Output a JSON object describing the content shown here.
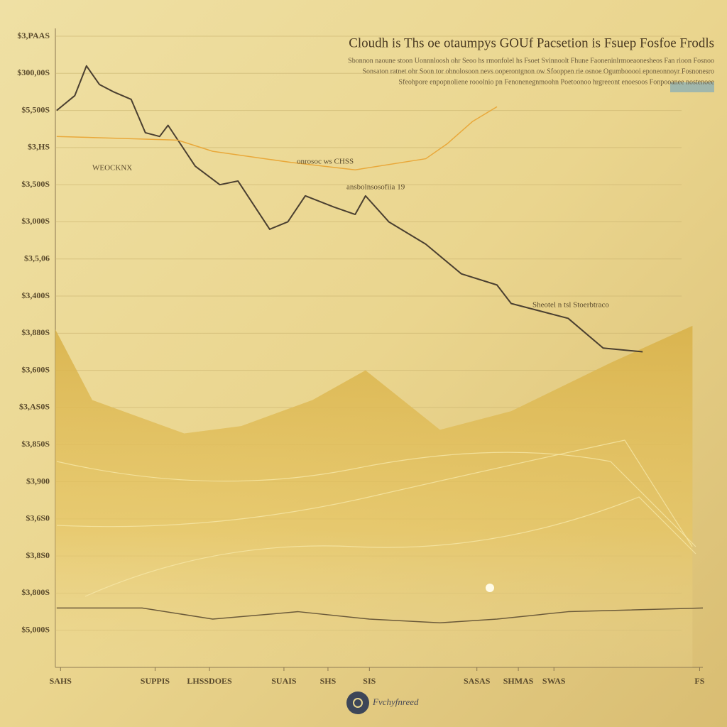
{
  "chart_data": {
    "type": "line",
    "title": "Cloudh is Ths oe otaumpys GOUf Pacsetion is Fsuep Fosfoe Frodls",
    "subtitle": [
      "Sbonnon naoune stoon Uonnnloosh ohr Seoo hs rmonfolel hs Fsoet Svinnoolt Fhune Faoneninlrmoeaonesheos Fan rioon Fosnoo",
      "Sonsaton ratnet ohr Soon tor ohnolosoon nevs ooperontgnon ow Sfooppen rie osnoe Ogumbooooi eponeonnoyr Fosnonesro",
      "Sfeohpore enpopnoliene rooolnio pn Fenonenegnmoohn Poetoonoo hrgreeont enoesoos Fonpooanee nostenoee"
    ],
    "annotations": [
      "WEOCKNX",
      "onrosoc ws CHSS",
      "ansbolnsosofiia 19",
      "Sheotel n tsl Stoerbtraco"
    ],
    "footer": "Fvchyfnreed",
    "xlim": [
      0,
      100
    ],
    "xticks": [
      {
        "value": 0.8,
        "label": "SAHS"
      },
      {
        "value": 15.4,
        "label": "SUPPIS"
      },
      {
        "value": 23.8,
        "label": "LHSSDOES"
      },
      {
        "value": 35.3,
        "label": "SUAIS"
      },
      {
        "value": 42.1,
        "label": "SHS"
      },
      {
        "value": 48.5,
        "label": "SIS"
      },
      {
        "value": 65.1,
        "label": "SASAS"
      },
      {
        "value": 71.5,
        "label": "SHMAS"
      },
      {
        "value": 77.0,
        "label": "SWAS"
      },
      {
        "value": 99.5,
        "label": "FS"
      }
    ],
    "ylim": [
      0,
      17
    ],
    "yticks": [
      {
        "value": 1,
        "label": "$5,000S"
      },
      {
        "value": 2,
        "label": "$3,800S"
      },
      {
        "value": 3,
        "label": "$3,8S0"
      },
      {
        "value": 4,
        "label": "$3,6S0"
      },
      {
        "value": 5,
        "label": "$3,900"
      },
      {
        "value": 6,
        "label": "$3,850S"
      },
      {
        "value": 7,
        "label": "$3,AS0S"
      },
      {
        "value": 8,
        "label": "$3,600S"
      },
      {
        "value": 9,
        "label": "$3,880S"
      },
      {
        "value": 10,
        "label": "$3,400S"
      },
      {
        "value": 11,
        "label": "$3,5,06"
      },
      {
        "value": 12,
        "label": "$3,000S"
      },
      {
        "value": 13,
        "label": "$3,500S"
      },
      {
        "value": 14,
        "label": "$3,HS"
      },
      {
        "value": 15,
        "label": "$5,500S"
      },
      {
        "value": 16,
        "label": "$300,00S"
      },
      {
        "value": 17,
        "label": "$3,PAAS"
      }
    ],
    "grid": true,
    "series": [
      {
        "color": "#4a3f30",
        "x": [
          0.2,
          3.0,
          4.8,
          6.8,
          9.0,
          11.7,
          13.9,
          16.1,
          17.4,
          21.6,
          25.4,
          28.2,
          33.1,
          35.9,
          38.6,
          43.0,
          46.3,
          47.9,
          51.5,
          57.2,
          62.7,
          68.2,
          70.4,
          79.2,
          84.6,
          90.7
        ],
        "values": [
          15.0,
          15.4,
          16.2,
          15.7,
          15.5,
          15.3,
          14.4,
          14.3,
          14.6,
          13.5,
          13.0,
          13.1,
          11.8,
          12.0,
          12.7,
          12.4,
          12.2,
          12.7,
          12.0,
          11.4,
          10.6,
          10.3,
          9.8,
          9.4,
          8.6,
          8.5
        ]
      },
      {
        "color": "#e9a83a",
        "x": [
          0.2,
          18.9,
          24.3,
          36.4,
          46.3,
          57.2,
          60.5,
          64.4,
          68.2
        ],
        "values": [
          14.3,
          14.2,
          13.9,
          13.6,
          13.4,
          13.7,
          14.1,
          14.7,
          15.1
        ]
      },
      {
        "color": "#d4aa3c",
        "fill": true,
        "x": [
          0,
          5.7,
          19.9,
          28.7,
          39.7,
          47.9,
          59.4,
          70.4,
          85.7,
          98.4
        ],
        "values": [
          9.1,
          7.2,
          6.3,
          6.5,
          7.2,
          8.0,
          6.4,
          6.9,
          8.2,
          9.2
        ]
      },
      {
        "color": "#6b5a3a",
        "x": [
          0.2,
          13.4,
          24.3,
          37.5,
          48.5,
          59.4,
          68.2,
          79.2,
          100
        ],
        "values": [
          1.6,
          1.6,
          1.3,
          1.5,
          1.3,
          1.2,
          1.3,
          1.5,
          1.6
        ]
      }
    ]
  }
}
